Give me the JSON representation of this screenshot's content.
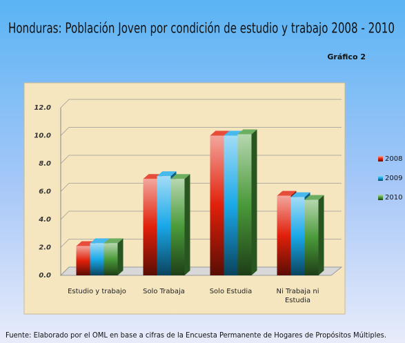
{
  "chart_data": {
    "type": "bar3d",
    "title": "Honduras: Población Joven por condición de estudio y trabajo 2008 - 2010",
    "subtitle": "Gráfico 2",
    "source": "Fuente: Elaborado por el OML en base a cifras de la Encuesta Permanente de Hogares de Propósitos Múltiples.",
    "categories": [
      "Estudio y trabajo",
      "Solo Trabaja",
      "Solo Estudia",
      "Ni Trabaja  ni Estudia"
    ],
    "series": [
      {
        "name": "2008",
        "color": "#e0200a",
        "values": [
          2.1,
          6.9,
          10.0,
          5.7
        ]
      },
      {
        "name": "2009",
        "color": "#1aa8e8",
        "values": [
          2.3,
          7.1,
          10.0,
          5.6
        ]
      },
      {
        "name": "2010",
        "color": "#4a9a3a",
        "values": [
          2.3,
          6.9,
          10.1,
          5.4
        ]
      }
    ],
    "ylim": [
      0,
      12
    ],
    "yticks": [
      {
        "value": 0,
        "label": "0.0"
      },
      {
        "value": 2,
        "label": "2.0"
      },
      {
        "value": 4,
        "label": "4.0"
      },
      {
        "value": 6,
        "label": "6.0"
      },
      {
        "value": 8,
        "label": "8.0"
      },
      {
        "value": 10,
        "label": "10.0"
      },
      {
        "value": 12,
        "label": "12.0"
      }
    ],
    "grid": true,
    "legend": "right"
  }
}
